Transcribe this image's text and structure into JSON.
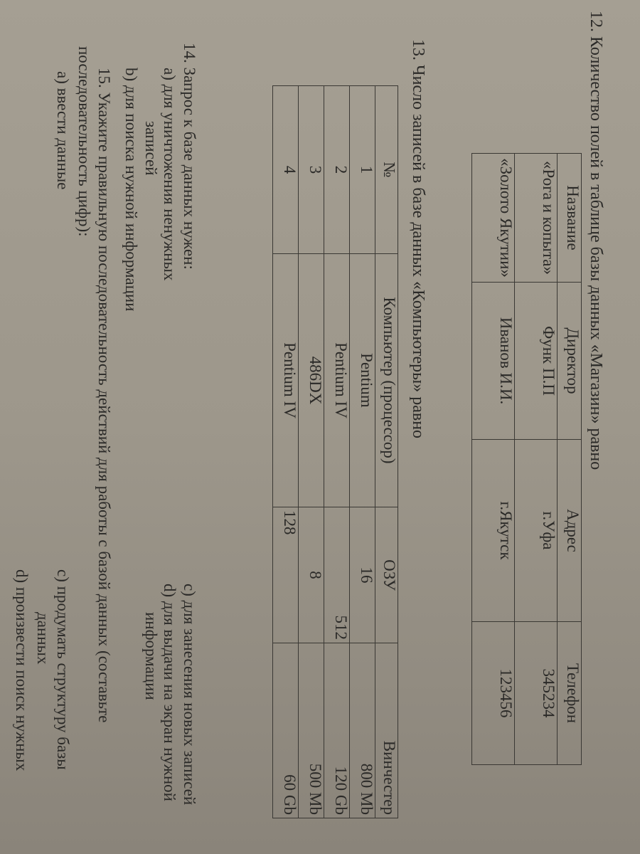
{
  "q12": {
    "title": "12. Количество полей в таблице базы данных «Магазин» равно",
    "headers": [
      "Название",
      "Директор",
      "Адрес",
      "Телефон"
    ],
    "rows": [
      [
        "«Рога и копыта»",
        "Функ П.П",
        "г.Уфа",
        "345234"
      ],
      [
        "«Золото Якутии»",
        "Иванов И.И.",
        "г.Якутск",
        "123456"
      ]
    ]
  },
  "q13": {
    "title": "13. Число записей в базе данных «Компьютеры» равно",
    "headers": [
      "№",
      "Компьютер (процессор)",
      "ОЗУ",
      "Винчестер"
    ],
    "rows": [
      [
        "1",
        "Pentium",
        "16",
        "800 Mb"
      ],
      [
        "2",
        "Pentium IV",
        "512",
        "120 Gb"
      ],
      [
        "3",
        "486DX",
        "8",
        "500 Mb"
      ],
      [
        "4",
        "Pentium IV",
        "128",
        "60 Gb"
      ]
    ]
  },
  "q14": {
    "title": "14. Запрос к базе данных нужен:",
    "a": "a) для уничтожения ненужных",
    "a2": "записей",
    "b": "b) для поиска нужной информации",
    "c": "c) для занесения новых записей",
    "d": "d) для выдачи на экран нужной",
    "d2": "информации"
  },
  "q15": {
    "title": "15. Укажите правильную последовательность действий для работы с базой данных (составьте",
    "title2": "последовательность цифр):",
    "a": "a) ввести данные",
    "c": "c) продумать структуру базы",
    "c2": "данных",
    "d": "d) произвести поиск нужных"
  }
}
